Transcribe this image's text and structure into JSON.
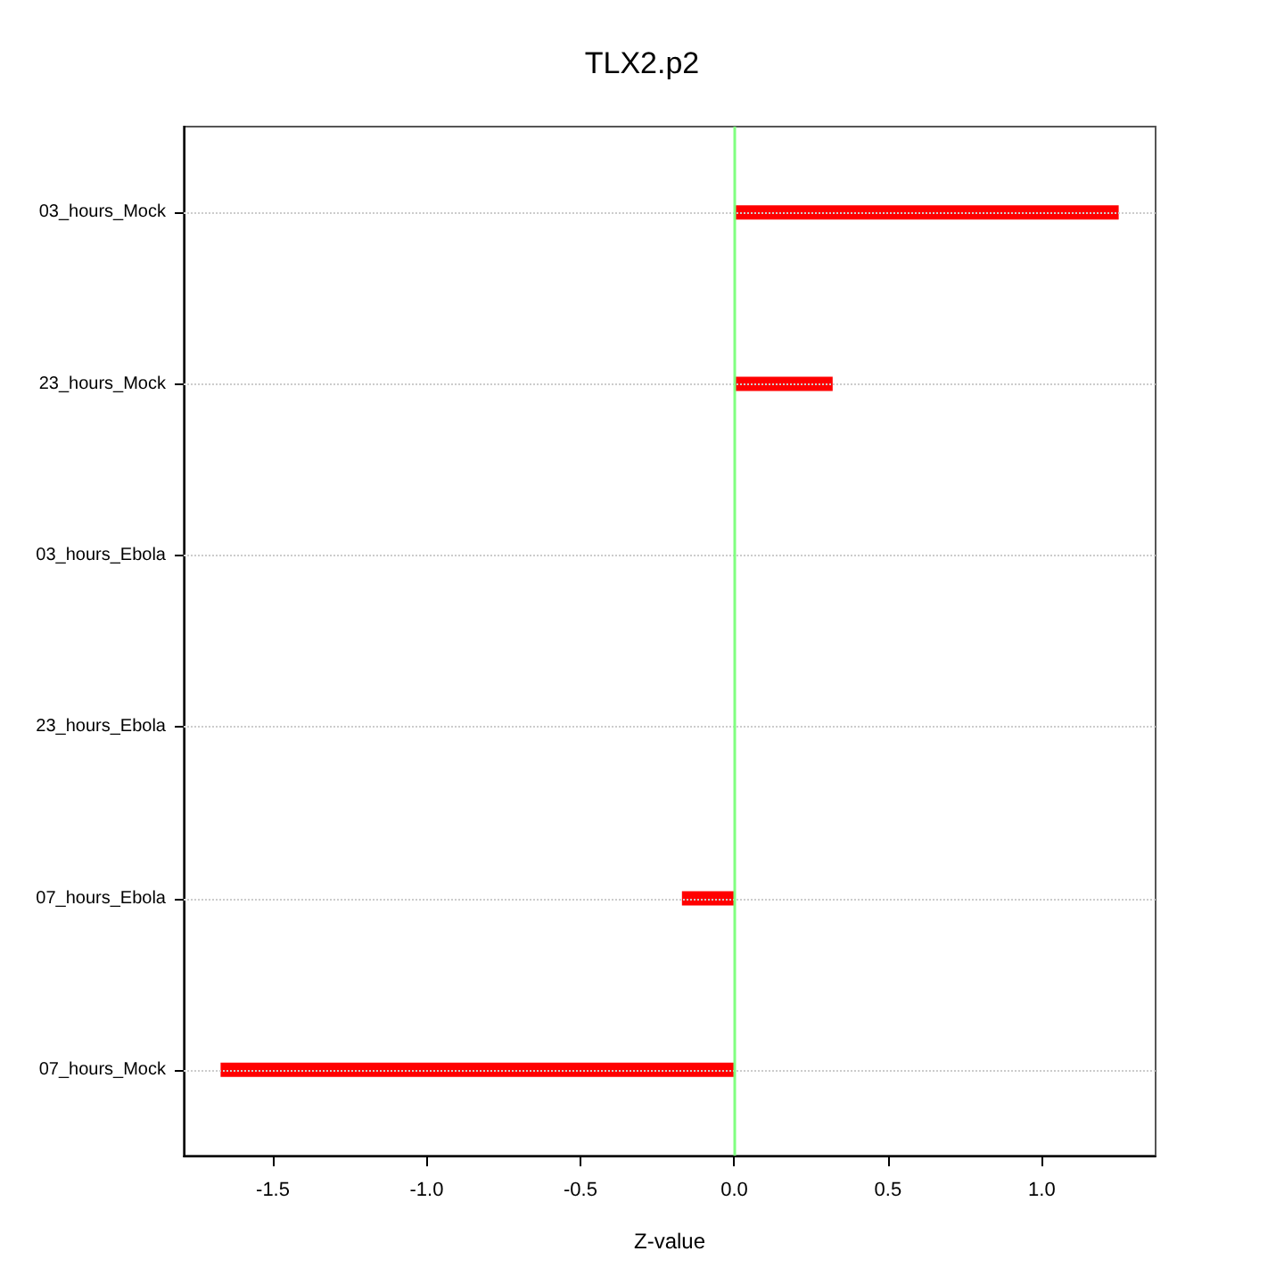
{
  "chart_data": {
    "type": "bar",
    "orientation": "horizontal",
    "title": "TLX2.p2",
    "xlabel": "Z-value",
    "categories": [
      "03_hours_Mock",
      "23_hours_Mock",
      "03_hours_Ebola",
      "23_hours_Ebola",
      "07_hours_Ebola",
      "07_hours_Mock"
    ],
    "values": [
      1.25,
      0.32,
      null,
      null,
      -0.17,
      -1.67
    ],
    "color": "#ff0000",
    "xlim": [
      -1.79,
      1.37
    ],
    "xticks": [
      -1.5,
      {
        "value": -1,
        "label": "-1.0"
      },
      -0.5,
      {
        "value": 0,
        "label": "0.0"
      },
      0.5,
      {
        "value": 1,
        "label": "1.0"
      }
    ],
    "ref_lines": [
      {
        "axis": "x",
        "value": 0,
        "color": "#80ff80"
      }
    ],
    "grid": "y"
  }
}
